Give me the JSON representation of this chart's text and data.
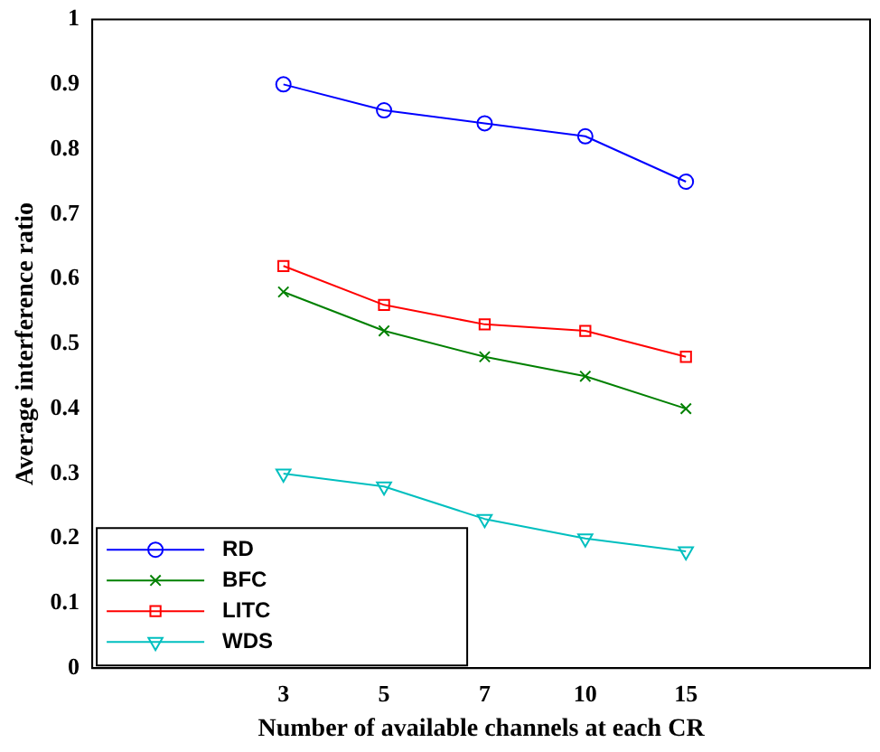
{
  "chart_data": {
    "type": "line",
    "xlabel": "Number of available channels at each CR",
    "ylabel": "Average interference ratio",
    "categories": [
      "3",
      "5",
      "7",
      "10",
      "15"
    ],
    "ylim": [
      0,
      1
    ],
    "yticks": [
      0,
      0.1,
      0.2,
      0.3,
      0.4,
      0.5,
      0.6,
      0.7,
      0.8,
      0.9,
      1
    ],
    "grid": false,
    "legend": "bottom left",
    "line_style": "solid",
    "series": [
      {
        "name": "RD",
        "color": "#0000ff",
        "marker": "circle",
        "values": [
          0.9,
          0.86,
          0.84,
          0.82,
          0.75
        ]
      },
      {
        "name": "BFC",
        "color": "#008000",
        "marker": "cross",
        "values": [
          0.58,
          0.52,
          0.48,
          0.45,
          0.4
        ]
      },
      {
        "name": "LITC",
        "color": "#ff0000",
        "marker": "square",
        "values": [
          0.62,
          0.56,
          0.53,
          0.52,
          0.48
        ]
      },
      {
        "name": "WDS",
        "color": "#00bfbf",
        "marker": "triangle",
        "values": [
          0.3,
          0.28,
          0.23,
          0.2,
          0.18
        ]
      }
    ]
  }
}
